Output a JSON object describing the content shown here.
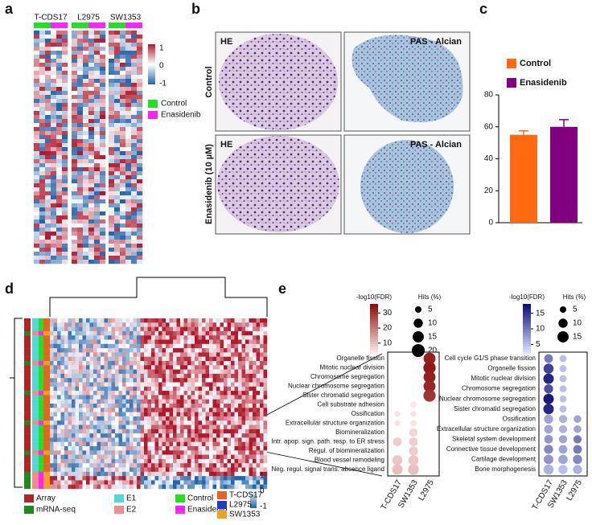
{
  "panels": [
    "a",
    "b",
    "c",
    "d",
    "e"
  ],
  "heatmap_a": {
    "columns": [
      "T-CDS17",
      "L2975",
      "SW1353"
    ],
    "colorbar_ticks": [
      1,
      0,
      -1
    ],
    "legend": [
      {
        "name": "Control",
        "color": "#22e022"
      },
      {
        "name": "Enasidenib",
        "color": "#ff22ff"
      }
    ]
  },
  "histology": {
    "rows": [
      "Control",
      "Enasidenib (10 µM)"
    ],
    "stains": [
      "HE",
      "PAS - Alcian"
    ]
  },
  "heatmap_d": {
    "colorbar_ticks": [
      1,
      0,
      -1
    ],
    "legend": [
      {
        "name": "Array",
        "color": "#b22424"
      },
      {
        "name": "mRNA-seq",
        "color": "#1e8a1e"
      },
      {
        "name": "E1",
        "color": "#4fd8d8"
      },
      {
        "name": "E2",
        "color": "#f08c8c"
      },
      {
        "name": "Control",
        "color": "#22e022"
      },
      {
        "name": "Enasidenib",
        "color": "#ff22ff"
      },
      {
        "name": "T-CDS17",
        "color": "#e8641e"
      },
      {
        "name": "L2975",
        "color": "#1e3cc8"
      },
      {
        "name": "SW1353",
        "color": "#f0a01e"
      }
    ]
  },
  "chart_data": [
    {
      "type": "bar",
      "categories": [
        "Control",
        "Enasidenib"
      ],
      "values": [
        55,
        60
      ],
      "errors": [
        2.5,
        4.5
      ],
      "colors": [
        "#ff6a10",
        "#800080"
      ],
      "ylim": [
        0,
        80
      ],
      "yticks": [
        0,
        20,
        40,
        60,
        80
      ]
    },
    {
      "type": "dot",
      "categories": [
        "Organelle fission",
        "Mitotic nuclear division",
        "Chromosome segregation",
        "Nuclear chromosome segregation",
        "Sister chromatid segregation",
        "Cell substrate adhesion",
        "Ossification",
        "Extracellular structure organization",
        "Biomineralization",
        "Intr. apop. sign. path. resp. to ER stress",
        "Regul. of biomineralization",
        "Blood vessel remodeling",
        "Neg. regul. signal trans. absence ligand"
      ],
      "series": [
        {
          "name": "T-CDS17",
          "values": [
            null,
            null,
            null,
            null,
            null,
            null,
            5,
            5,
            null,
            8,
            null,
            9,
            10
          ],
          "sizes": [
            null,
            null,
            null,
            null,
            null,
            null,
            4,
            4,
            null,
            9,
            null,
            12,
            13
          ]
        },
        {
          "name": "SW1353",
          "values": [
            null,
            null,
            null,
            null,
            null,
            4,
            5,
            5,
            7,
            8,
            8,
            9,
            10
          ],
          "sizes": [
            null,
            null,
            null,
            null,
            null,
            5,
            4,
            5,
            8,
            9,
            10,
            12,
            14
          ]
        },
        {
          "name": "L2975",
          "values": [
            33,
            34,
            33,
            32,
            30,
            null,
            null,
            null,
            null,
            null,
            null,
            null,
            null
          ],
          "sizes": [
            17,
            18,
            17,
            17,
            18,
            null,
            null,
            null,
            null,
            null,
            null,
            null,
            null
          ]
        }
      ],
      "color_label": "-log10(FDR)",
      "clim": [
        3,
        36
      ],
      "colorbar_ticks": [
        10,
        20,
        30
      ],
      "colors": [
        "#fff0f0",
        "#8b0a0a"
      ],
      "size_label": "Hits (%)",
      "size_ticks": [
        5,
        10,
        15,
        20
      ]
    },
    {
      "type": "dot",
      "categories": [
        "Cell cycle G1/S phase transition",
        "Organelle fission",
        "Mitotic nuclear division",
        "Chromosome segregation",
        "Nuclear chromosome segregation",
        "Sister chromatid segregation",
        "Ossification",
        "Extracellular structure organization",
        "Skeletal system development",
        "Connective tissue development",
        "Cartilage development",
        "Bone morphogenesis"
      ],
      "series": [
        {
          "name": "T-CDS17",
          "values": [
            10,
            14,
            16,
            13,
            17,
            16,
            7,
            7,
            8,
            9,
            8,
            6
          ],
          "sizes": [
            9,
            12,
            13,
            10,
            13,
            13,
            10,
            9,
            9,
            10,
            11,
            12
          ]
        },
        {
          "name": "SW1353",
          "values": [
            5,
            5,
            5,
            5,
            5,
            5,
            6,
            6,
            7,
            7,
            7,
            5
          ],
          "sizes": [
            6,
            6,
            6,
            6,
            6,
            6,
            8,
            8,
            8,
            9,
            10,
            10
          ]
        },
        {
          "name": "L2975",
          "values": [
            null,
            null,
            null,
            null,
            null,
            null,
            7,
            7,
            10,
            10,
            9,
            6
          ],
          "sizes": [
            null,
            null,
            null,
            null,
            null,
            null,
            7,
            7,
            8,
            9,
            10,
            10
          ]
        }
      ],
      "color_label": "-log10(FDR)",
      "clim": [
        2,
        18
      ],
      "colorbar_ticks": [
        5,
        10,
        15
      ],
      "colors": [
        "#e4e8ff",
        "#0a0a78"
      ],
      "size_label": "Hits (%)",
      "size_ticks": [
        5,
        10,
        15
      ]
    }
  ]
}
